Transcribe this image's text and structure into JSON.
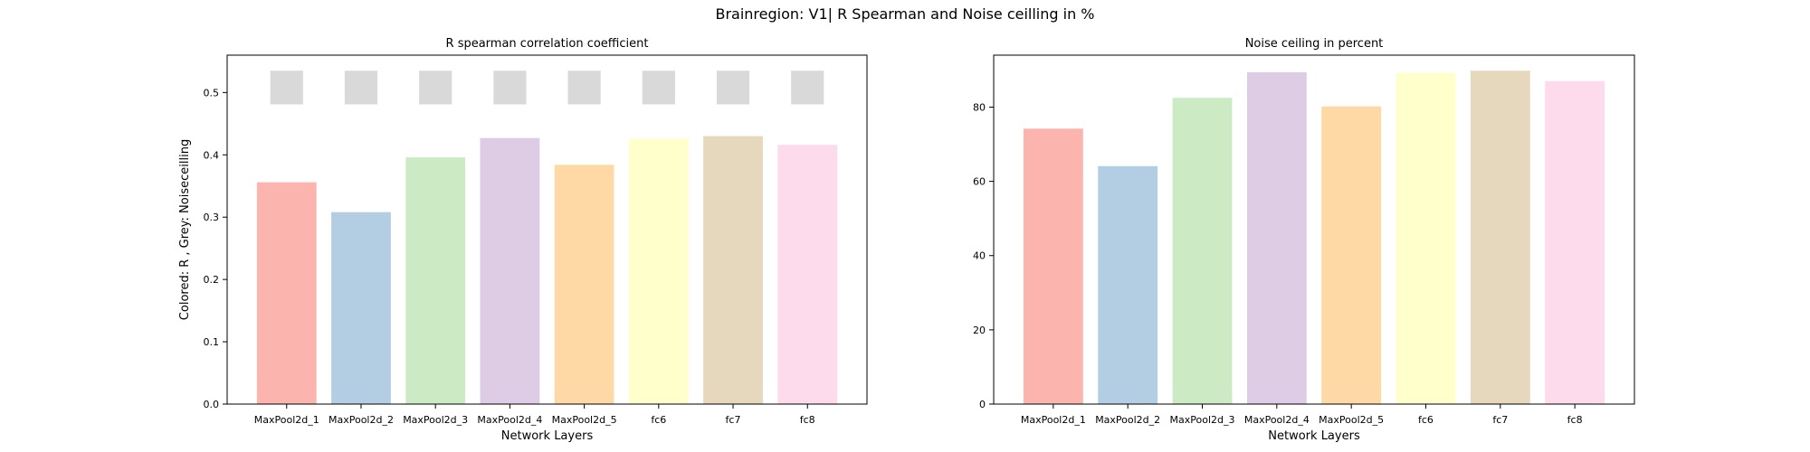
{
  "figure": {
    "suptitle": "Brainregion: V1| R Spearman and Noise ceilling in %"
  },
  "chart_data": [
    {
      "type": "bar",
      "title": "R spearman correlation coefficient",
      "xlabel": "Network Layers",
      "ylabel": "Colored: R , Grey: Noiseceilling",
      "categories": [
        "MaxPool2d_1",
        "MaxPool2d_2",
        "MaxPool2d_3",
        "MaxPool2d_4",
        "MaxPool2d_5",
        "fc6",
        "fc7",
        "fc8"
      ],
      "series": [
        {
          "values": [
            0.356,
            0.308,
            0.396,
            0.427,
            0.384,
            0.426,
            0.43,
            0.416
          ]
        }
      ],
      "noise_ceiling_bands": {
        "lower": 0.481,
        "upper": 0.535,
        "color": "#d9d9d9"
      },
      "ylim": [
        0,
        0.56
      ],
      "yticks": [
        0.0,
        0.1,
        0.2,
        0.3,
        0.4,
        0.5
      ],
      "ytick_labels": [
        "0.0",
        "0.1",
        "0.2",
        "0.3",
        "0.4",
        "0.5"
      ],
      "colors": [
        "#fbb4ae",
        "#b3cde3",
        "#ccebc5",
        "#decbe4",
        "#fed9a6",
        "#ffffcc",
        "#e5d8bd",
        "#fddaec"
      ],
      "grid": false,
      "legend": "none"
    },
    {
      "type": "bar",
      "title": "Noise ceiling in percent",
      "xlabel": "Network Layers",
      "ylabel": "",
      "categories": [
        "MaxPool2d_1",
        "MaxPool2d_2",
        "MaxPool2d_3",
        "MaxPool2d_4",
        "MaxPool2d_5",
        "fc6",
        "fc7",
        "fc8"
      ],
      "series": [
        {
          "values": [
            74.2,
            64.1,
            82.5,
            89.4,
            80.2,
            89.2,
            89.8,
            87.0
          ]
        }
      ],
      "ylim": [
        0,
        94.0
      ],
      "yticks": [
        0,
        20,
        40,
        60,
        80
      ],
      "ytick_labels": [
        "0",
        "20",
        "40",
        "60",
        "80"
      ],
      "colors": [
        "#fbb4ae",
        "#b3cde3",
        "#ccebc5",
        "#decbe4",
        "#fed9a6",
        "#ffffcc",
        "#e5d8bd",
        "#fddaec"
      ],
      "grid": false,
      "legend": "none"
    }
  ]
}
